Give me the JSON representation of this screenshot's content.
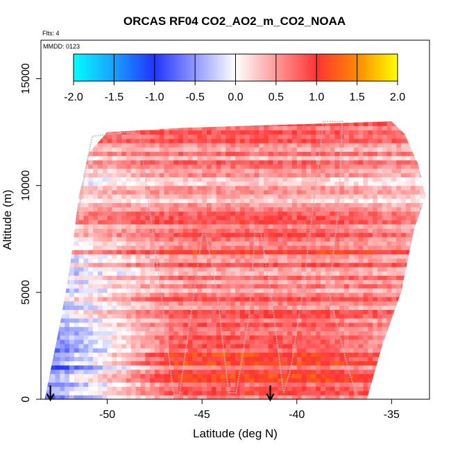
{
  "chart_data": {
    "type": "heatmap",
    "title": "ORCAS RF04 CO2_AO2_m_CO2_NOAA",
    "flights_note": "Flts: 4",
    "date_note": "MMDD: 0123",
    "xlabel": "Latitude (deg N)",
    "ylabel": "Altitude (m)",
    "xlim": [
      -53.5,
      -33
    ],
    "ylim": [
      0,
      16800
    ],
    "x_ticks": [
      -50,
      -45,
      -40,
      -35
    ],
    "x_tick_labels": [
      "-50",
      "-45",
      "-40",
      "-35"
    ],
    "y_ticks": [
      0,
      5000,
      10000,
      15000
    ],
    "y_tick_labels": [
      "0",
      "5000",
      "10000",
      "15000"
    ],
    "colorbar": {
      "range": [
        -2.0,
        2.0
      ],
      "ticks": [
        -2.0,
        -1.5,
        -1.0,
        -0.5,
        0.0,
        0.5,
        1.0,
        1.5,
        2.0
      ],
      "tick_labels": [
        "-2.0",
        "-1.5",
        "-1.0",
        "-0.5",
        "0.0",
        "0.5",
        "1.0",
        "1.5",
        "2.0"
      ],
      "colors": [
        "#00ffff",
        "#1a9fff",
        "#2233ff",
        "#ffffff",
        "#ff3333",
        "#ff8800",
        "#ffff00"
      ]
    },
    "arrows_at_lat": [
      -53.0,
      -41.4
    ],
    "outline": {
      "left_edge": [
        [
          -53.3,
          0
        ],
        [
          -52.5,
          3500
        ],
        [
          -52.0,
          6000
        ],
        [
          -51.5,
          9500
        ],
        [
          -51.0,
          11500
        ],
        [
          -50.0,
          12500
        ],
        [
          -48.0,
          12600
        ],
        [
          -46.0,
          12700
        ]
      ],
      "right_edge": [
        [
          -36.3,
          0
        ],
        [
          -35.5,
          2500
        ],
        [
          -34.5,
          5000
        ],
        [
          -33.8,
          8000
        ],
        [
          -33.2,
          9500
        ],
        [
          -33.6,
          11000
        ],
        [
          -34.3,
          12400
        ],
        [
          -35.0,
          13000
        ]
      ],
      "top_left_lat": -49.5,
      "top_right_lat": -34.8
    },
    "flight_track": [
      [
        -51.6,
        8300
      ],
      [
        -51.2,
        10500
      ],
      [
        -50.8,
        12300
      ],
      [
        -49.0,
        12500
      ],
      [
        -48.3,
        12400
      ],
      [
        -47.2,
        5200
      ],
      [
        -46.5,
        200
      ],
      [
        -46.2,
        200
      ],
      [
        -45.5,
        4500
      ],
      [
        -45.0,
        7700
      ],
      [
        -44.8,
        7700
      ],
      [
        -44.2,
        5000
      ],
      [
        -43.6,
        300
      ],
      [
        -43.2,
        300
      ],
      [
        -42.5,
        4000
      ],
      [
        -42.2,
        7900
      ],
      [
        -41.9,
        7800
      ],
      [
        -41.3,
        4500
      ],
      [
        -40.7,
        300
      ],
      [
        -40.3,
        1500
      ],
      [
        -39.7,
        5000
      ],
      [
        -39.0,
        10000
      ],
      [
        -38.6,
        13000
      ],
      [
        -37.6,
        13000
      ],
      [
        -37.8,
        9000
      ],
      [
        -38.3,
        5000
      ],
      [
        -37.4,
        1800
      ],
      [
        -36.8,
        0
      ]
    ],
    "anomaly_profile": [
      {
        "alt": 500,
        "left": -0.6,
        "center": 0.75,
        "right": 0.6
      },
      {
        "alt": 1500,
        "left": -0.9,
        "center": 0.85,
        "right": 0.55
      },
      {
        "alt": 2500,
        "left": -0.7,
        "center": 0.95,
        "right": 0.45
      },
      {
        "alt": 3500,
        "left": -0.5,
        "center": 0.8,
        "right": 0.45
      },
      {
        "alt": 4500,
        "left": -0.35,
        "center": 0.6,
        "right": 0.5
      },
      {
        "alt": 5500,
        "left": -0.25,
        "center": 0.55,
        "right": 0.6
      },
      {
        "alt": 6500,
        "left": -0.15,
        "center": 0.75,
        "right": 0.7
      },
      {
        "alt": 7500,
        "left": 0.1,
        "center": 0.8,
        "right": 0.55
      },
      {
        "alt": 8500,
        "left": 0.25,
        "center": 0.6,
        "right": 0.35
      },
      {
        "alt": 9500,
        "left": 0.2,
        "center": 0.4,
        "right": 0.2
      },
      {
        "alt": 10500,
        "left": -0.1,
        "center": 0.45,
        "right": 0.25
      },
      {
        "alt": 11500,
        "left": 0.35,
        "center": 0.6,
        "right": 0.45
      },
      {
        "alt": 12500,
        "left": 0.5,
        "center": 0.7,
        "right": 0.55
      }
    ]
  }
}
